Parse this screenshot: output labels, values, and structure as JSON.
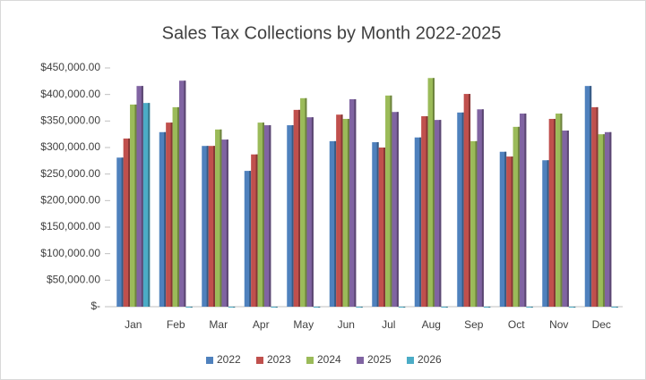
{
  "chart_data": {
    "type": "bar",
    "title": "Sales Tax Collections by Month 2022-2025",
    "categories": [
      "Jan",
      "Feb",
      "Mar",
      "Apr",
      "May",
      "Jun",
      "Jul",
      "Aug",
      "Sep",
      "Oct",
      "Nov",
      "Dec"
    ],
    "series": [
      {
        "name": "2022",
        "color": "#4f81bd",
        "values": [
          281000,
          329000,
          303000,
          256000,
          342000,
          312000,
          310000,
          319000,
          366000,
          292000,
          276000,
          416000
        ]
      },
      {
        "name": "2023",
        "color": "#c0504d",
        "values": [
          317000,
          347000,
          303000,
          287000,
          371000,
          362000,
          300000,
          359000,
          401000,
          283000,
          354000,
          376000
        ]
      },
      {
        "name": "2024",
        "color": "#9bbb59",
        "values": [
          381000,
          376000,
          334000,
          347000,
          393000,
          354000,
          398000,
          431000,
          312000,
          339000,
          364000,
          325000
        ]
      },
      {
        "name": "2025",
        "color": "#8064a2",
        "values": [
          416000,
          426000,
          315000,
          342000,
          357000,
          391000,
          367000,
          352000,
          372000,
          364000,
          332000,
          329000
        ]
      },
      {
        "name": "2026",
        "color": "#4bacc6",
        "values": [
          384000,
          0,
          0,
          0,
          0,
          0,
          0,
          0,
          0,
          0,
          0,
          0
        ]
      }
    ],
    "ylim": [
      0,
      450000
    ],
    "yticks": [
      {
        "value": 0,
        "label": "$-"
      },
      {
        "value": 50000,
        "label": "$50,000.00"
      },
      {
        "value": 100000,
        "label": "$100,000.00"
      },
      {
        "value": 150000,
        "label": "$150,000.00"
      },
      {
        "value": 200000,
        "label": "$200,000.00"
      },
      {
        "value": 250000,
        "label": "$250,000.00"
      },
      {
        "value": 300000,
        "label": "$300,000.00"
      },
      {
        "value": 350000,
        "label": "$350,000.00"
      },
      {
        "value": 400000,
        "label": "$400,000.00"
      },
      {
        "value": 450000,
        "label": "$450,000.00"
      }
    ],
    "grid": false,
    "legend": "bottom"
  }
}
